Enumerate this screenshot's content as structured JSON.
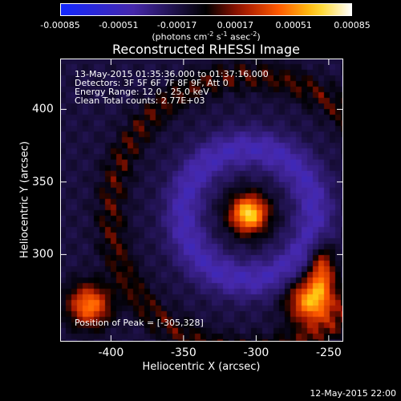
{
  "chart_data": {
    "type": "heatmap",
    "title": "Reconstructed RHESSI Image",
    "xlabel": "Heliocentric X (arcsec)",
    "ylabel": "Heliocentric Y (arcsec)",
    "xlim": [
      -435,
      -240
    ],
    "ylim": [
      240,
      435
    ],
    "xticks": [
      "-400",
      "-350",
      "-300",
      "-250"
    ],
    "xtick_values": [
      -400,
      -350,
      -300,
      -250
    ],
    "yticks": [
      "400",
      "350",
      "300"
    ],
    "ytick_values": [
      400,
      350,
      300
    ],
    "colorbar": {
      "ticks": [
        "-0.00085",
        "-0.00051",
        "-0.00017",
        "0.00017",
        "0.00051",
        "0.00085"
      ],
      "unit_prefix": "(photons cm",
      "unit_exp1": "-2",
      "unit_mid": " s",
      "unit_exp2": "-1",
      "unit_mid2": " asec",
      "unit_exp3": "-2",
      "unit_suffix": ")"
    },
    "info_lines": [
      "13-May-2015 01:35:36.000 to 01:37:16.000",
      "Detectors: 3F 5F 6F 7F 8F 9F, Att 0",
      "Energy Range: 12.0 - 25.0 keV",
      "Clean    Total counts: 2.77E+03"
    ],
    "peak_label": "Position of Peak = [-305,328]",
    "peak": {
      "x": -305,
      "y": 328
    },
    "sources": [
      {
        "x": -305,
        "y": 328,
        "amp": 1.0,
        "sx": 9,
        "sy": 9
      },
      {
        "x": -262,
        "y": 268,
        "amp": 0.85,
        "sx": 11,
        "sy": 11
      },
      {
        "x": -415,
        "y": 265,
        "amp": 0.75,
        "sx": 10,
        "sy": 10
      },
      {
        "x": -255,
        "y": 290,
        "amp": 0.6,
        "sx": 6,
        "sy": 12
      }
    ]
  },
  "footer_date": "12-May-2015 22:00"
}
